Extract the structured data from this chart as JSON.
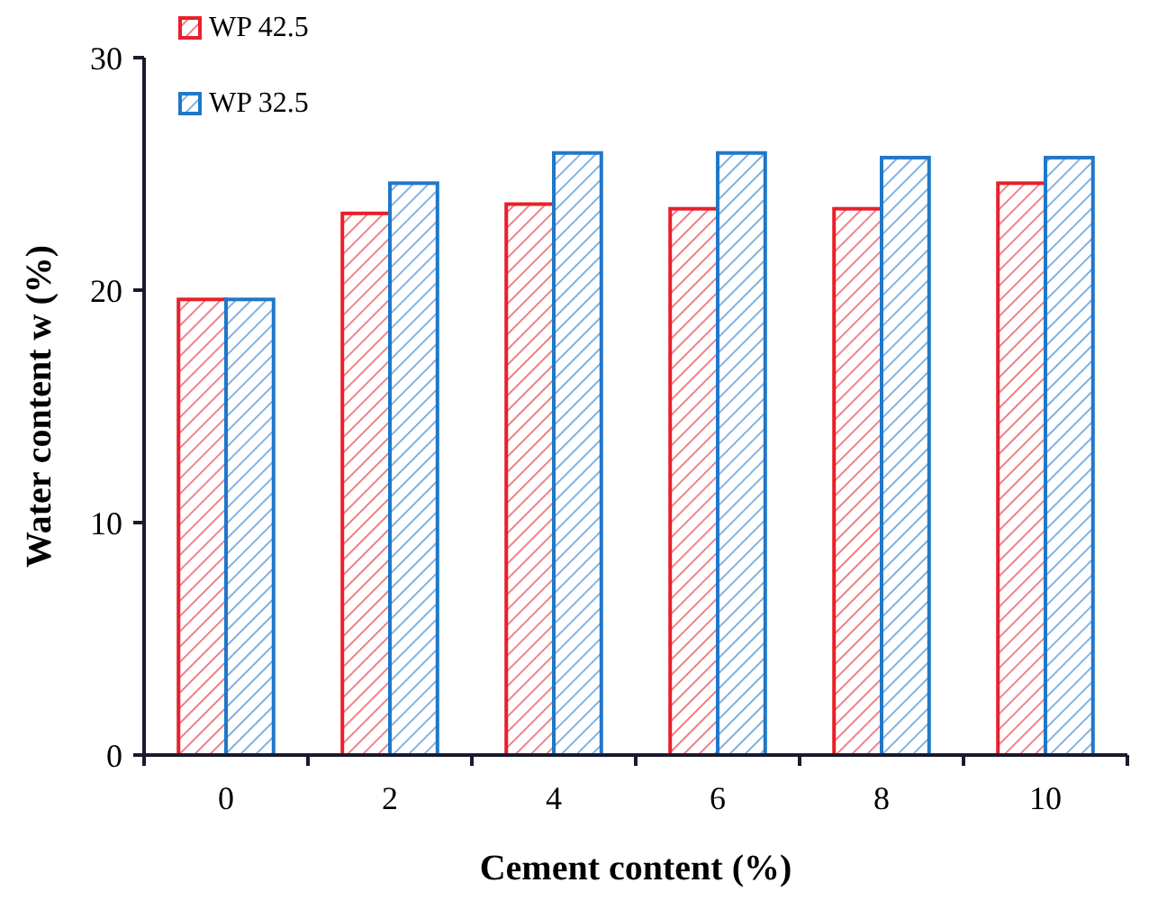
{
  "chart_data": {
    "type": "bar",
    "xlabel": "Cement content (%)",
    "ylabel": "Water content w (%)",
    "categories": [
      "0",
      "2",
      "4",
      "6",
      "8",
      "10"
    ],
    "series": [
      {
        "name": "WP 42.5",
        "color": "#e8202a",
        "values": [
          19.6,
          23.3,
          23.7,
          23.5,
          23.5,
          24.6
        ]
      },
      {
        "name": "WP 32.5",
        "color": "#1f78c8",
        "values": [
          19.6,
          24.6,
          25.9,
          25.9,
          25.7,
          25.7
        ]
      }
    ],
    "ylim": [
      0,
      30
    ],
    "yticks": [
      0,
      10,
      20,
      30
    ],
    "grid": false,
    "legend": "top left"
  }
}
